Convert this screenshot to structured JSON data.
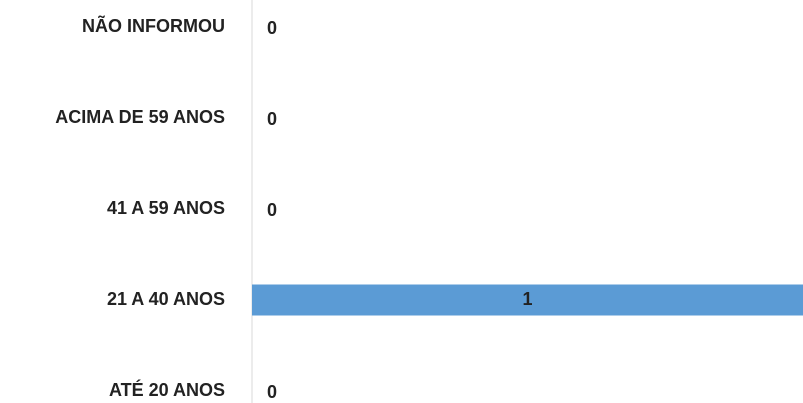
{
  "chart_data": {
    "type": "bar",
    "orientation": "horizontal",
    "categories": [
      "NÃO INFORMOU",
      "ACIMA DE 59 ANOS",
      "41 A 59 ANOS",
      "21 A 40 ANOS",
      "ATÉ 20 ANOS"
    ],
    "values": [
      0,
      0,
      0,
      1,
      0
    ],
    "color": "#5b9bd5",
    "xlim": [
      0,
      1
    ]
  }
}
